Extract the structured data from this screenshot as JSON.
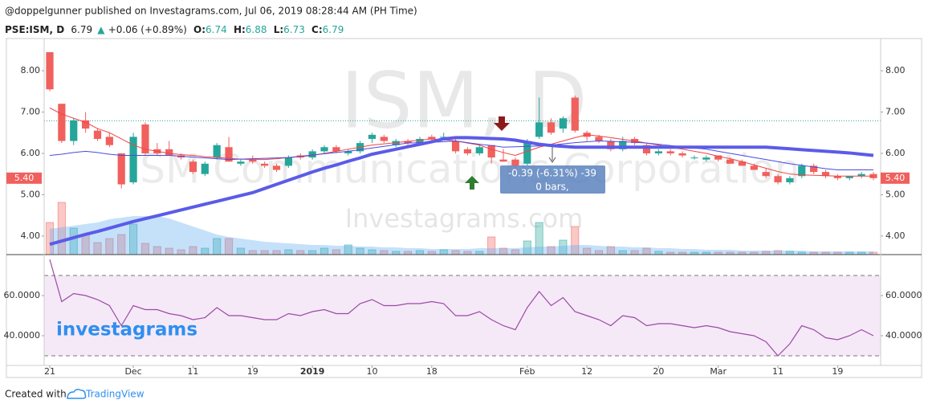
{
  "header": {
    "published": "@doppelgunner published on Investagrams.com, Jul 06, 2019 08:28:44 AM (PH Time)"
  },
  "symbol": {
    "name": "PSE:ISM, D",
    "last": "6.79",
    "arrow": "▲",
    "change": "+0.06 (+0.89%)",
    "o_label": "O:",
    "o": "6.74",
    "h_label": "H:",
    "h": "6.88",
    "l_label": "L:",
    "l": "6.73",
    "c_label": "C:",
    "c": "6.79"
  },
  "watermark": {
    "ticker": "ISM, D",
    "company": "ISM Communications Corporation",
    "site": "Investagrams.com",
    "logo": "investagrams"
  },
  "tooltip": {
    "change": "-0.39 (-6.31%) -39",
    "bars": "0 bars,"
  },
  "footer": {
    "created": "Created with",
    "brand": "TradingView"
  },
  "chart_data": {
    "type": "candlestick",
    "categories": [
      "21",
      null,
      null,
      null,
      null,
      null,
      null,
      "Dec",
      null,
      null,
      null,
      null,
      "11",
      null,
      null,
      null,
      null,
      "19",
      null,
      null,
      null,
      null,
      "2019",
      null,
      null,
      null,
      null,
      "10",
      null,
      null,
      null,
      null,
      "18",
      null,
      null,
      null,
      null,
      null,
      null,
      null,
      "Feb",
      null,
      null,
      null,
      null,
      "12",
      null,
      null,
      null,
      null,
      null,
      "20",
      null,
      null,
      null,
      null,
      "Mar",
      null,
      null,
      null,
      null,
      "11",
      null,
      null,
      null,
      null,
      "19",
      null,
      null,
      null
    ],
    "open": [
      8.45,
      7.2,
      6.3,
      6.8,
      6.55,
      6.4,
      6.0,
      5.3,
      6.7,
      6.1,
      6.1,
      5.95,
      5.8,
      5.5,
      5.9,
      6.15,
      5.75,
      5.85,
      5.75,
      5.7,
      5.7,
      5.95,
      5.9,
      6.05,
      6.15,
      6.0,
      6.05,
      6.35,
      6.4,
      6.2,
      6.3,
      6.25,
      6.4,
      6.4,
      6.3,
      6.1,
      6.0,
      6.2,
      5.85,
      5.85,
      5.75,
      6.4,
      6.75,
      6.6,
      7.35,
      6.5,
      6.4,
      6.3,
      6.1,
      6.35,
      6.2,
      6.0,
      6.05,
      6.0,
      5.9,
      5.85,
      5.95,
      5.85,
      5.8,
      5.7,
      5.55,
      5.45,
      5.3,
      5.45,
      5.7,
      5.55,
      5.45,
      5.4,
      5.45,
      5.5
    ],
    "high": [
      8.45,
      7.2,
      6.85,
      7.0,
      6.6,
      6.5,
      6.0,
      6.5,
      6.75,
      6.25,
      6.3,
      6.0,
      5.85,
      5.8,
      6.25,
      6.4,
      5.85,
      5.95,
      5.8,
      5.75,
      5.95,
      6.0,
      6.1,
      6.2,
      6.2,
      6.1,
      6.3,
      6.5,
      6.45,
      6.35,
      6.35,
      6.4,
      6.45,
      6.5,
      6.35,
      6.15,
      6.2,
      6.2,
      6.1,
      5.9,
      6.35,
      7.35,
      6.85,
      6.9,
      7.4,
      6.55,
      6.45,
      6.35,
      6.4,
      6.4,
      6.25,
      6.1,
      6.1,
      6.05,
      5.95,
      5.95,
      5.95,
      5.9,
      5.85,
      5.75,
      5.65,
      5.5,
      5.45,
      5.75,
      5.75,
      5.6,
      5.5,
      5.45,
      5.55,
      5.55
    ],
    "low": [
      7.5,
      6.25,
      6.2,
      6.5,
      6.3,
      6.15,
      5.15,
      5.25,
      5.95,
      5.95,
      5.95,
      5.85,
      5.5,
      5.45,
      5.85,
      5.8,
      5.7,
      5.75,
      5.65,
      5.55,
      5.65,
      5.85,
      5.85,
      6.0,
      6.0,
      5.95,
      6.0,
      6.25,
      6.25,
      6.15,
      6.2,
      6.2,
      6.3,
      6.35,
      6.0,
      5.95,
      5.95,
      5.75,
      5.8,
      5.5,
      5.7,
      6.35,
      6.45,
      6.5,
      6.5,
      6.3,
      6.25,
      6.05,
      6.05,
      6.2,
      5.95,
      5.95,
      5.95,
      5.9,
      5.85,
      5.8,
      5.8,
      5.75,
      5.7,
      5.6,
      5.4,
      5.25,
      5.25,
      5.4,
      5.5,
      5.4,
      5.35,
      5.35,
      5.4,
      5.35
    ],
    "close": [
      7.55,
      6.3,
      6.8,
      6.6,
      6.35,
      6.2,
      5.25,
      6.4,
      6.0,
      6.0,
      5.95,
      5.9,
      5.55,
      5.75,
      6.2,
      5.8,
      5.8,
      5.8,
      5.7,
      5.6,
      5.9,
      5.9,
      6.05,
      6.15,
      6.05,
      6.05,
      6.25,
      6.45,
      6.3,
      6.3,
      6.25,
      6.35,
      6.35,
      6.4,
      6.05,
      6.0,
      6.15,
      5.9,
      5.8,
      5.7,
      6.3,
      6.75,
      6.5,
      6.85,
      6.55,
      6.4,
      6.3,
      6.1,
      6.3,
      6.25,
      6.0,
      6.05,
      6.0,
      5.95,
      5.9,
      5.9,
      5.85,
      5.75,
      5.7,
      5.6,
      5.45,
      5.3,
      5.4,
      5.7,
      5.55,
      5.45,
      5.4,
      5.45,
      5.5,
      5.4
    ],
    "moving_averages": [
      {
        "color": "#ef4444",
        "values": [
          7.1,
          6.95,
          6.85,
          6.75,
          6.6,
          6.5,
          6.35,
          6.2,
          6.1,
          6.05,
          6.0,
          5.97,
          5.95,
          5.92,
          5.9,
          5.88,
          5.86,
          5.85,
          5.85,
          5.87,
          5.9,
          5.92,
          5.95,
          6.0,
          6.05,
          6.1,
          6.15,
          6.2,
          6.23,
          6.26,
          6.29,
          6.32,
          6.35,
          6.33,
          6.3,
          6.25,
          6.2,
          6.1,
          6.02,
          5.95,
          6.05,
          6.15,
          6.22,
          6.3,
          6.38,
          6.45,
          6.42,
          6.38,
          6.34,
          6.3,
          6.25,
          6.2,
          6.15,
          6.1,
          6.05,
          6.0,
          5.93,
          5.87,
          5.8,
          5.72,
          5.64,
          5.56,
          5.5,
          5.48,
          5.47,
          5.46,
          5.45,
          5.45,
          5.45,
          5.45
        ]
      },
      {
        "color": "#4a4ae0",
        "values": [
          5.95,
          5.98,
          6.02,
          6.05,
          6.02,
          5.98,
          5.95,
          5.95,
          5.95,
          5.95,
          5.95,
          5.93,
          5.91,
          5.89,
          5.87,
          5.85,
          5.86,
          5.87,
          5.88,
          5.89,
          5.9,
          5.93,
          5.96,
          5.99,
          6.02,
          6.05,
          6.09,
          6.13,
          6.17,
          6.21,
          6.25,
          6.26,
          6.27,
          6.28,
          6.3,
          6.26,
          6.22,
          6.19,
          6.15,
          6.16,
          6.17,
          6.18,
          6.2,
          6.23,
          6.26,
          6.28,
          6.3,
          6.29,
          6.28,
          6.27,
          6.25,
          6.22,
          6.19,
          6.16,
          6.13,
          6.1,
          6.05,
          6.0,
          5.95,
          5.9,
          5.85,
          5.8,
          5.75,
          5.71,
          5.67,
          5.63,
          5.6,
          5.6,
          5.6,
          5.6
        ]
      },
      {
        "color": "#5b5be8",
        "values": [
          3.8,
          3.88,
          3.96,
          4.04,
          4.11,
          4.19,
          4.27,
          4.35,
          4.42,
          4.49,
          4.56,
          4.63,
          4.7,
          4.77,
          4.84,
          4.91,
          4.98,
          5.05,
          5.15,
          5.25,
          5.35,
          5.45,
          5.55,
          5.64,
          5.72,
          5.81,
          5.89,
          5.98,
          6.04,
          6.1,
          6.16,
          6.22,
          6.28,
          6.35,
          6.38,
          6.38,
          6.37,
          6.36,
          6.35,
          6.32,
          6.27,
          6.22,
          6.19,
          6.17,
          6.15,
          6.15,
          6.15,
          6.15,
          6.15,
          6.15,
          6.15,
          6.15,
          6.15,
          6.15,
          6.15,
          6.15,
          6.15,
          6.15,
          6.15,
          6.15,
          6.15,
          6.13,
          6.11,
          6.09,
          6.07,
          6.05,
          6.03,
          6.01,
          5.98,
          5.95
        ]
      }
    ],
    "volume": [
      40,
      65,
      33,
      25,
      15,
      20,
      25,
      38,
      14,
      10,
      8,
      6,
      10,
      8,
      20,
      20,
      8,
      5,
      5,
      5,
      6,
      5,
      5,
      8,
      6,
      12,
      8,
      6,
      5,
      4,
      4,
      5,
      4,
      6,
      5,
      4,
      4,
      22,
      8,
      6,
      17,
      40,
      10,
      18,
      35,
      8,
      5,
      10,
      5,
      5,
      8,
      4,
      3,
      3,
      3,
      3,
      3,
      3,
      3,
      3,
      4,
      5,
      4,
      3,
      3,
      3,
      3,
      3,
      3,
      3
    ],
    "volume_ma": [
      32,
      34,
      36,
      38,
      40,
      44,
      46,
      48,
      48,
      48,
      45,
      40,
      35,
      30,
      25,
      22,
      20,
      18,
      16,
      15,
      14,
      13,
      12,
      12,
      11,
      11,
      10,
      10,
      9,
      9,
      8,
      8,
      7,
      7,
      7,
      7,
      8,
      8,
      8,
      8,
      9,
      10,
      10,
      11,
      12,
      12,
      11,
      10,
      10,
      9,
      9,
      8,
      8,
      7,
      7,
      6,
      6,
      6,
      5,
      5,
      5,
      5,
      5,
      5,
      4,
      4,
      4,
      4,
      4,
      4
    ],
    "up_color": "#26a69a",
    "down_color": "#f0605d",
    "volume_ma_color": "#5aa9f0",
    "price_line": 6.79,
    "last_price": {
      "value": 5.4,
      "label": "5.40"
    },
    "ylim": [
      3.55,
      8.74
    ],
    "yticks": [
      {
        "value": 4,
        "label": "4.00"
      },
      {
        "value": 5,
        "label": "5.00"
      },
      {
        "value": 6,
        "label": "6.00"
      },
      {
        "value": 7,
        "label": "7.00"
      },
      {
        "value": 8,
        "label": "8.00"
      }
    ],
    "grid": false,
    "rsi": {
      "color": "#9c4aa6",
      "values": [
        78,
        57,
        61,
        60,
        58,
        55,
        45,
        55,
        53,
        53,
        51,
        50,
        48,
        49,
        54,
        50,
        50,
        49,
        48,
        48,
        51,
        50,
        52,
        53,
        51,
        51,
        56,
        58,
        55,
        55,
        56,
        56,
        57,
        56,
        50,
        50,
        52,
        48,
        45,
        43,
        54,
        62,
        55,
        59,
        52,
        50,
        48,
        45,
        50,
        49,
        45,
        46,
        46,
        45,
        44,
        45,
        44,
        42,
        41,
        40,
        37,
        30,
        36,
        45,
        43,
        39,
        38,
        40,
        43,
        40
      ],
      "ylim": [
        25.2,
        80
      ],
      "yticks": [
        {
          "value": 40,
          "label": "40.0000"
        },
        {
          "value": 60,
          "label": "60.0000"
        }
      ],
      "bands": [
        70,
        30
      ]
    }
  }
}
